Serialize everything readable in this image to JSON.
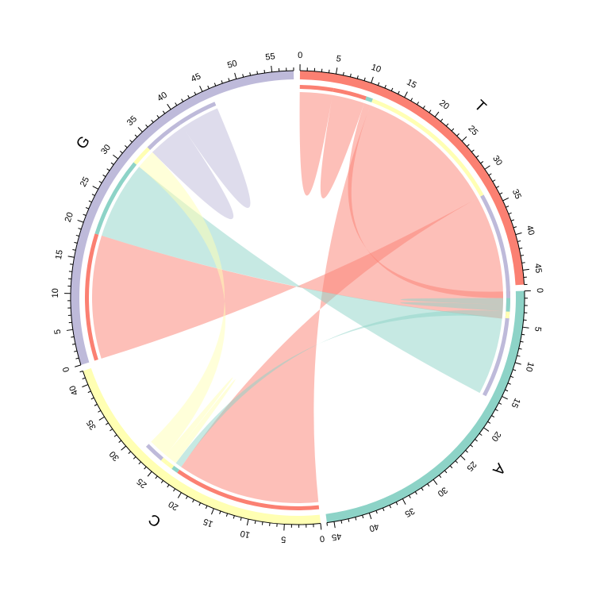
{
  "chart_data": {
    "type": "chord",
    "sectors": [
      {
        "name": "T",
        "total": 47,
        "color": "#FB8072",
        "ticks": [
          0,
          5,
          10,
          15,
          20,
          25,
          30,
          35,
          40,
          45
        ]
      },
      {
        "name": "A",
        "total": 46,
        "color": "#8DD3C7",
        "ticks": [
          0,
          5,
          10,
          15,
          20,
          25,
          30,
          35,
          40,
          45
        ]
      },
      {
        "name": "C",
        "total": 42,
        "color": "#FFFFB3",
        "ticks": [
          0,
          5,
          10,
          15,
          20,
          25,
          30,
          35,
          40
        ]
      },
      {
        "name": "G",
        "total": 58,
        "color": "#BEBADA",
        "ticks": [
          0,
          5,
          10,
          15,
          20,
          25,
          30,
          35,
          40,
          45,
          50,
          55
        ]
      }
    ],
    "links": [
      {
        "from": "T",
        "to": "T",
        "value": 5
      },
      {
        "from": "T",
        "to": "A",
        "value": 1
      },
      {
        "from": "T",
        "to": "C",
        "value": 22
      },
      {
        "from": "T",
        "to": "G",
        "value": 19
      },
      {
        "from": "A",
        "to": "A",
        "value": 1
      },
      {
        "from": "A",
        "to": "C",
        "value": 1
      },
      {
        "from": "A",
        "to": "G",
        "value": 12
      },
      {
        "from": "C",
        "to": "C",
        "value": 1
      },
      {
        "from": "C",
        "to": "G",
        "value": 3
      },
      {
        "from": "G",
        "to": "G",
        "value": 6
      }
    ]
  }
}
